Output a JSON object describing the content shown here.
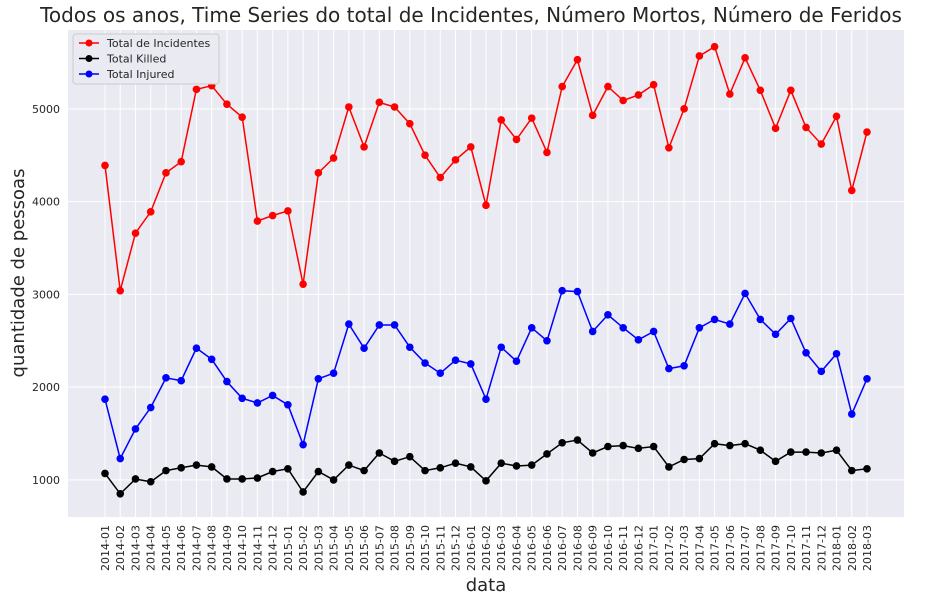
{
  "chart_data": {
    "type": "line",
    "title": "Todos os anos, Time Series do total de Incidentes, Número Mortos, Número de Feridos",
    "xlabel": "data",
    "ylabel": "quantidade de pessoas",
    "ylim": [
      600,
      5850
    ],
    "yticks": [
      1000,
      2000,
      3000,
      4000,
      5000
    ],
    "grid": true,
    "legend_position": "top-left",
    "categories": [
      "2014-01",
      "2014-02",
      "2014-03",
      "2014-04",
      "2014-05",
      "2014-06",
      "2014-07",
      "2014-08",
      "2014-09",
      "2014-10",
      "2014-11",
      "2014-12",
      "2015-01",
      "2015-02",
      "2015-03",
      "2015-04",
      "2015-05",
      "2015-06",
      "2015-07",
      "2015-08",
      "2015-09",
      "2015-10",
      "2015-11",
      "2015-12",
      "2016-01",
      "2016-02",
      "2016-03",
      "2016-04",
      "2016-05",
      "2016-06",
      "2016-07",
      "2016-08",
      "2016-09",
      "2016-10",
      "2016-11",
      "2016-12",
      "2017-01",
      "2017-02",
      "2017-03",
      "2017-04",
      "2017-05",
      "2017-06",
      "2017-07",
      "2017-08",
      "2017-09",
      "2017-10",
      "2017-11",
      "2017-12",
      "2018-01",
      "2018-02",
      "2018-03"
    ],
    "series": [
      {
        "name": "Total de Incidentes",
        "color": "#ff0000",
        "values": [
          4390,
          3040,
          3660,
          3890,
          4310,
          4430,
          5210,
          5250,
          5050,
          4910,
          3790,
          3850,
          3900,
          3110,
          4310,
          4470,
          5020,
          4590,
          5070,
          5020,
          4840,
          4500,
          4260,
          4450,
          4590,
          3960,
          4880,
          4670,
          4900,
          4530,
          5240,
          5530,
          4930,
          5240,
          5090,
          5150,
          5260,
          4580,
          5000,
          5570,
          5670,
          5160,
          5550,
          5200,
          4790,
          5200,
          4800,
          4620,
          4920,
          4120,
          4750
        ]
      },
      {
        "name": "Total Killed",
        "color": "#000000",
        "values": [
          1070,
          850,
          1010,
          980,
          1100,
          1130,
          1160,
          1140,
          1010,
          1010,
          1020,
          1090,
          1120,
          870,
          1090,
          1000,
          1160,
          1100,
          1290,
          1200,
          1250,
          1100,
          1130,
          1180,
          1140,
          990,
          1180,
          1150,
          1160,
          1280,
          1400,
          1430,
          1290,
          1360,
          1370,
          1340,
          1360,
          1140,
          1220,
          1230,
          1390,
          1370,
          1390,
          1320,
          1200,
          1300,
          1300,
          1290,
          1320,
          1100,
          1120
        ]
      },
      {
        "name": "Total Injured",
        "color": "#0000ff",
        "values": [
          1870,
          1230,
          1550,
          1780,
          2100,
          2070,
          2420,
          2300,
          2060,
          1880,
          1830,
          1910,
          1810,
          1380,
          2090,
          2150,
          2680,
          2420,
          2670,
          2670,
          2430,
          2260,
          2150,
          2290,
          2250,
          1870,
          2430,
          2280,
          2640,
          2500,
          3040,
          3030,
          2600,
          2780,
          2640,
          2510,
          2600,
          2200,
          2230,
          2640,
          2730,
          2680,
          3010,
          2730,
          2570,
          2740,
          2370,
          2170,
          2360,
          1710,
          2090
        ]
      }
    ]
  }
}
